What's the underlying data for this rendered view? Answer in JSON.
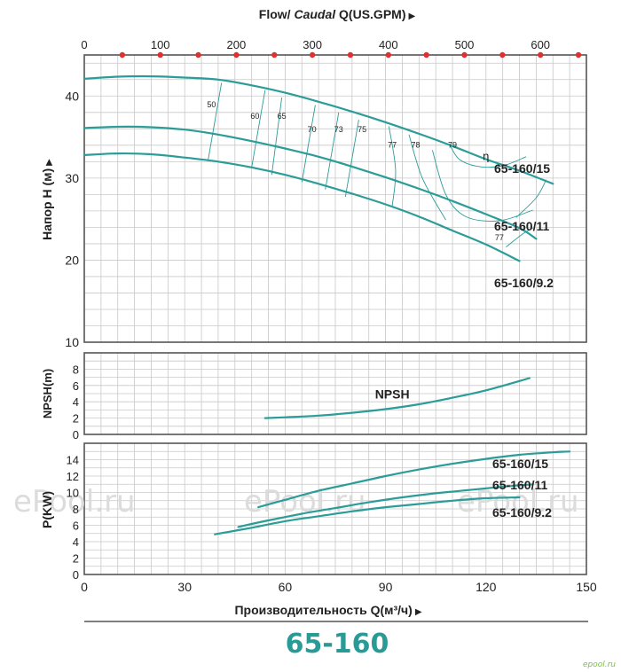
{
  "title": "65-160",
  "watermark": "ePool.ru",
  "corner_logo": "epool.ru",
  "colors": {
    "curve": "#2b9c98",
    "grid": "#c8c8c8",
    "frame": "#555555",
    "title": "#2a9a96",
    "dot": "#e03030",
    "watermark": "#dcdcdc"
  },
  "chart_data": [
    {
      "type": "line",
      "panel": "head",
      "top_axis": {
        "label_prefix": "Flow/ ",
        "label_italic": "Caudal",
        "label_suffix": " Q(US.GPM)",
        "arrow": "▶",
        "ticks": [
          0,
          100,
          200,
          300,
          400,
          500,
          600
        ]
      },
      "xlim": [
        0,
        150
      ],
      "ylim": [
        10,
        45
      ],
      "ylabel": "Напор Н (м)",
      "ylabel_arrow": "▶",
      "yticks": [
        10,
        20,
        30,
        40
      ],
      "grid": true,
      "series": [
        {
          "name": "65-160/15",
          "x": [
            0,
            10,
            20,
            30,
            40,
            50,
            60,
            70,
            80,
            90,
            100,
            110,
            120,
            130,
            140
          ],
          "y": [
            42.1,
            42.35,
            42.4,
            42.25,
            42,
            41.3,
            40.4,
            39.3,
            38.1,
            36.8,
            35.4,
            33.9,
            32.3,
            30.9,
            29.3
          ]
        },
        {
          "name": "65-160/11",
          "x": [
            0,
            10,
            20,
            30,
            40,
            50,
            60,
            70,
            80,
            90,
            100,
            110,
            120,
            130,
            135
          ],
          "y": [
            36.1,
            36.25,
            36.2,
            35.9,
            35.3,
            34.5,
            33.6,
            32.6,
            31.4,
            30.1,
            28.7,
            27.2,
            25.6,
            23.9,
            22.6
          ]
        },
        {
          "name": "65-160/9.2",
          "x": [
            0,
            10,
            20,
            30,
            40,
            50,
            60,
            70,
            80,
            90,
            100,
            110,
            120,
            130
          ],
          "y": [
            32.8,
            33,
            32.9,
            32.5,
            32,
            31.3,
            30.4,
            29.3,
            28.1,
            26.8,
            25.3,
            23.6,
            21.9,
            19.9
          ]
        }
      ],
      "efficiency_labels": [
        {
          "text": "50",
          "x": 38,
          "y": 38.6
        },
        {
          "text": "60",
          "x": 51,
          "y": 37.2
        },
        {
          "text": "65",
          "x": 59,
          "y": 37.2
        },
        {
          "text": "70",
          "x": 68,
          "y": 35.6
        },
        {
          "text": "73",
          "x": 76,
          "y": 35.6
        },
        {
          "text": "75",
          "x": 83,
          "y": 35.6
        },
        {
          "text": "77",
          "x": 92,
          "y": 33.7
        },
        {
          "text": "78",
          "x": 99,
          "y": 33.7
        },
        {
          "text": "79",
          "x": 110,
          "y": 33.7
        },
        {
          "text": "77",
          "x": 124,
          "y": 22.4
        }
      ],
      "eta_label": {
        "text": "η",
        "x": 120,
        "y": 32.2
      }
    },
    {
      "type": "line",
      "panel": "npsh",
      "xlim": [
        0,
        150
      ],
      "ylim": [
        0,
        10
      ],
      "ylabel": "NPSH(m)",
      "yticks": [
        0,
        2,
        4,
        6,
        8
      ],
      "grid": true,
      "series": [
        {
          "name": "NPSH",
          "x": [
            54,
            60,
            70,
            80,
            90,
            100,
            110,
            120,
            133
          ],
          "y": [
            2,
            2.1,
            2.3,
            2.65,
            3.1,
            3.7,
            4.5,
            5.4,
            6.9
          ]
        }
      ],
      "series_label": {
        "text": "NPSH",
        "x": 92,
        "y": 4.4
      }
    },
    {
      "type": "line",
      "panel": "power",
      "xlim": [
        0,
        150
      ],
      "ylim": [
        0,
        16
      ],
      "ylabel": "P(KW)",
      "yticks": [
        0,
        2,
        4,
        6,
        8,
        10,
        12,
        14
      ],
      "xticks": [
        0,
        30,
        60,
        90,
        120,
        150
      ],
      "xlabel": "Производительность Q(м³/ч)",
      "xlabel_arrow": "▶",
      "grid": true,
      "series": [
        {
          "name": "65-160/15",
          "x": [
            52,
            60,
            70,
            80,
            90,
            100,
            110,
            120,
            130,
            140,
            145
          ],
          "y": [
            8.2,
            9.1,
            10.2,
            11.1,
            12.0,
            12.8,
            13.5,
            14.1,
            14.6,
            14.9,
            15.0
          ]
        },
        {
          "name": "65-160/11",
          "x": [
            46,
            55,
            65,
            75,
            85,
            95,
            105,
            115,
            125,
            134
          ],
          "y": [
            5.8,
            6.6,
            7.4,
            8.1,
            8.8,
            9.4,
            9.9,
            10.3,
            10.7,
            11.0
          ]
        },
        {
          "name": "65-160/9.2",
          "x": [
            39,
            50,
            60,
            70,
            80,
            90,
            100,
            110,
            120,
            130
          ],
          "y": [
            4.9,
            5.7,
            6.5,
            7.1,
            7.7,
            8.2,
            8.6,
            9.0,
            9.3,
            9.4
          ]
        }
      ]
    }
  ]
}
